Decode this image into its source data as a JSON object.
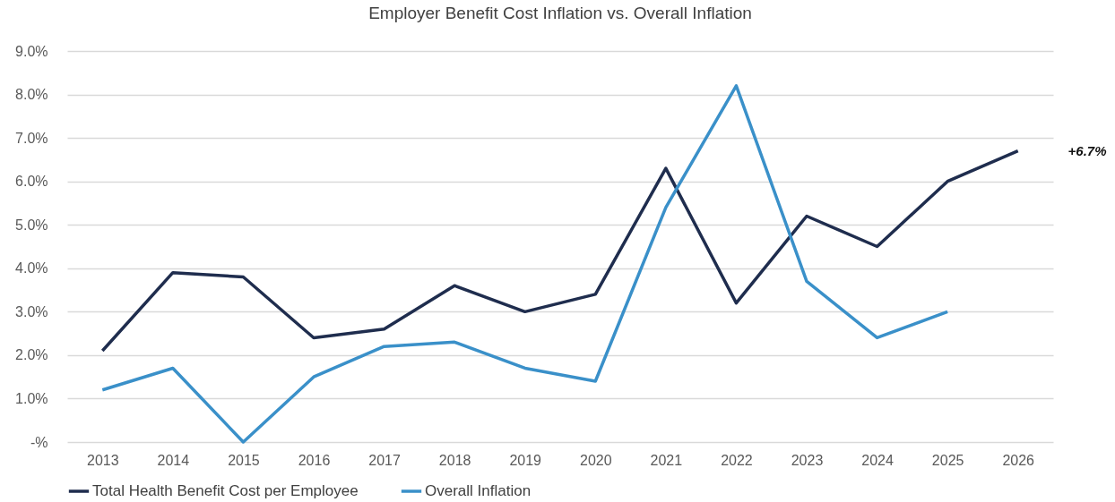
{
  "chart_data": {
    "type": "line",
    "title": "Employer Benefit Cost Inflation vs. Overall Inflation",
    "categories": [
      "2013",
      "2014",
      "2015",
      "2016",
      "2017",
      "2018",
      "2019",
      "2020",
      "2021",
      "2022",
      "2023",
      "2024",
      "2025",
      "2026"
    ],
    "series": [
      {
        "name": "Total Health Benefit Cost per Employee",
        "color": "#1f2d4e",
        "values": [
          2.1,
          3.9,
          3.8,
          2.4,
          2.6,
          3.6,
          3.0,
          3.4,
          6.3,
          3.2,
          5.2,
          4.5,
          6.0,
          6.7
        ]
      },
      {
        "name": "Overall Inflation",
        "color": "#3a90c9",
        "values": [
          1.2,
          1.7,
          0.0,
          1.5,
          2.2,
          2.3,
          1.7,
          1.4,
          5.4,
          8.2,
          3.7,
          2.4,
          3.0,
          null
        ]
      }
    ],
    "ylim": [
      0,
      9
    ],
    "yticks": [
      {
        "value": 0,
        "label": "-%"
      },
      {
        "value": 1,
        "label": "1.0%"
      },
      {
        "value": 2,
        "label": "2.0%"
      },
      {
        "value": 3,
        "label": "3.0%"
      },
      {
        "value": 4,
        "label": "4.0%"
      },
      {
        "value": 5,
        "label": "5.0%"
      },
      {
        "value": 6,
        "label": "6.0%"
      },
      {
        "value": 7,
        "label": "7.0%"
      },
      {
        "value": 8,
        "label": "8.0%"
      },
      {
        "value": 9,
        "label": "9.0%"
      }
    ],
    "grid": "y",
    "legend": "bottom",
    "marker": "none",
    "line_style": "solid",
    "annotations": [
      "+6.7%"
    ]
  }
}
